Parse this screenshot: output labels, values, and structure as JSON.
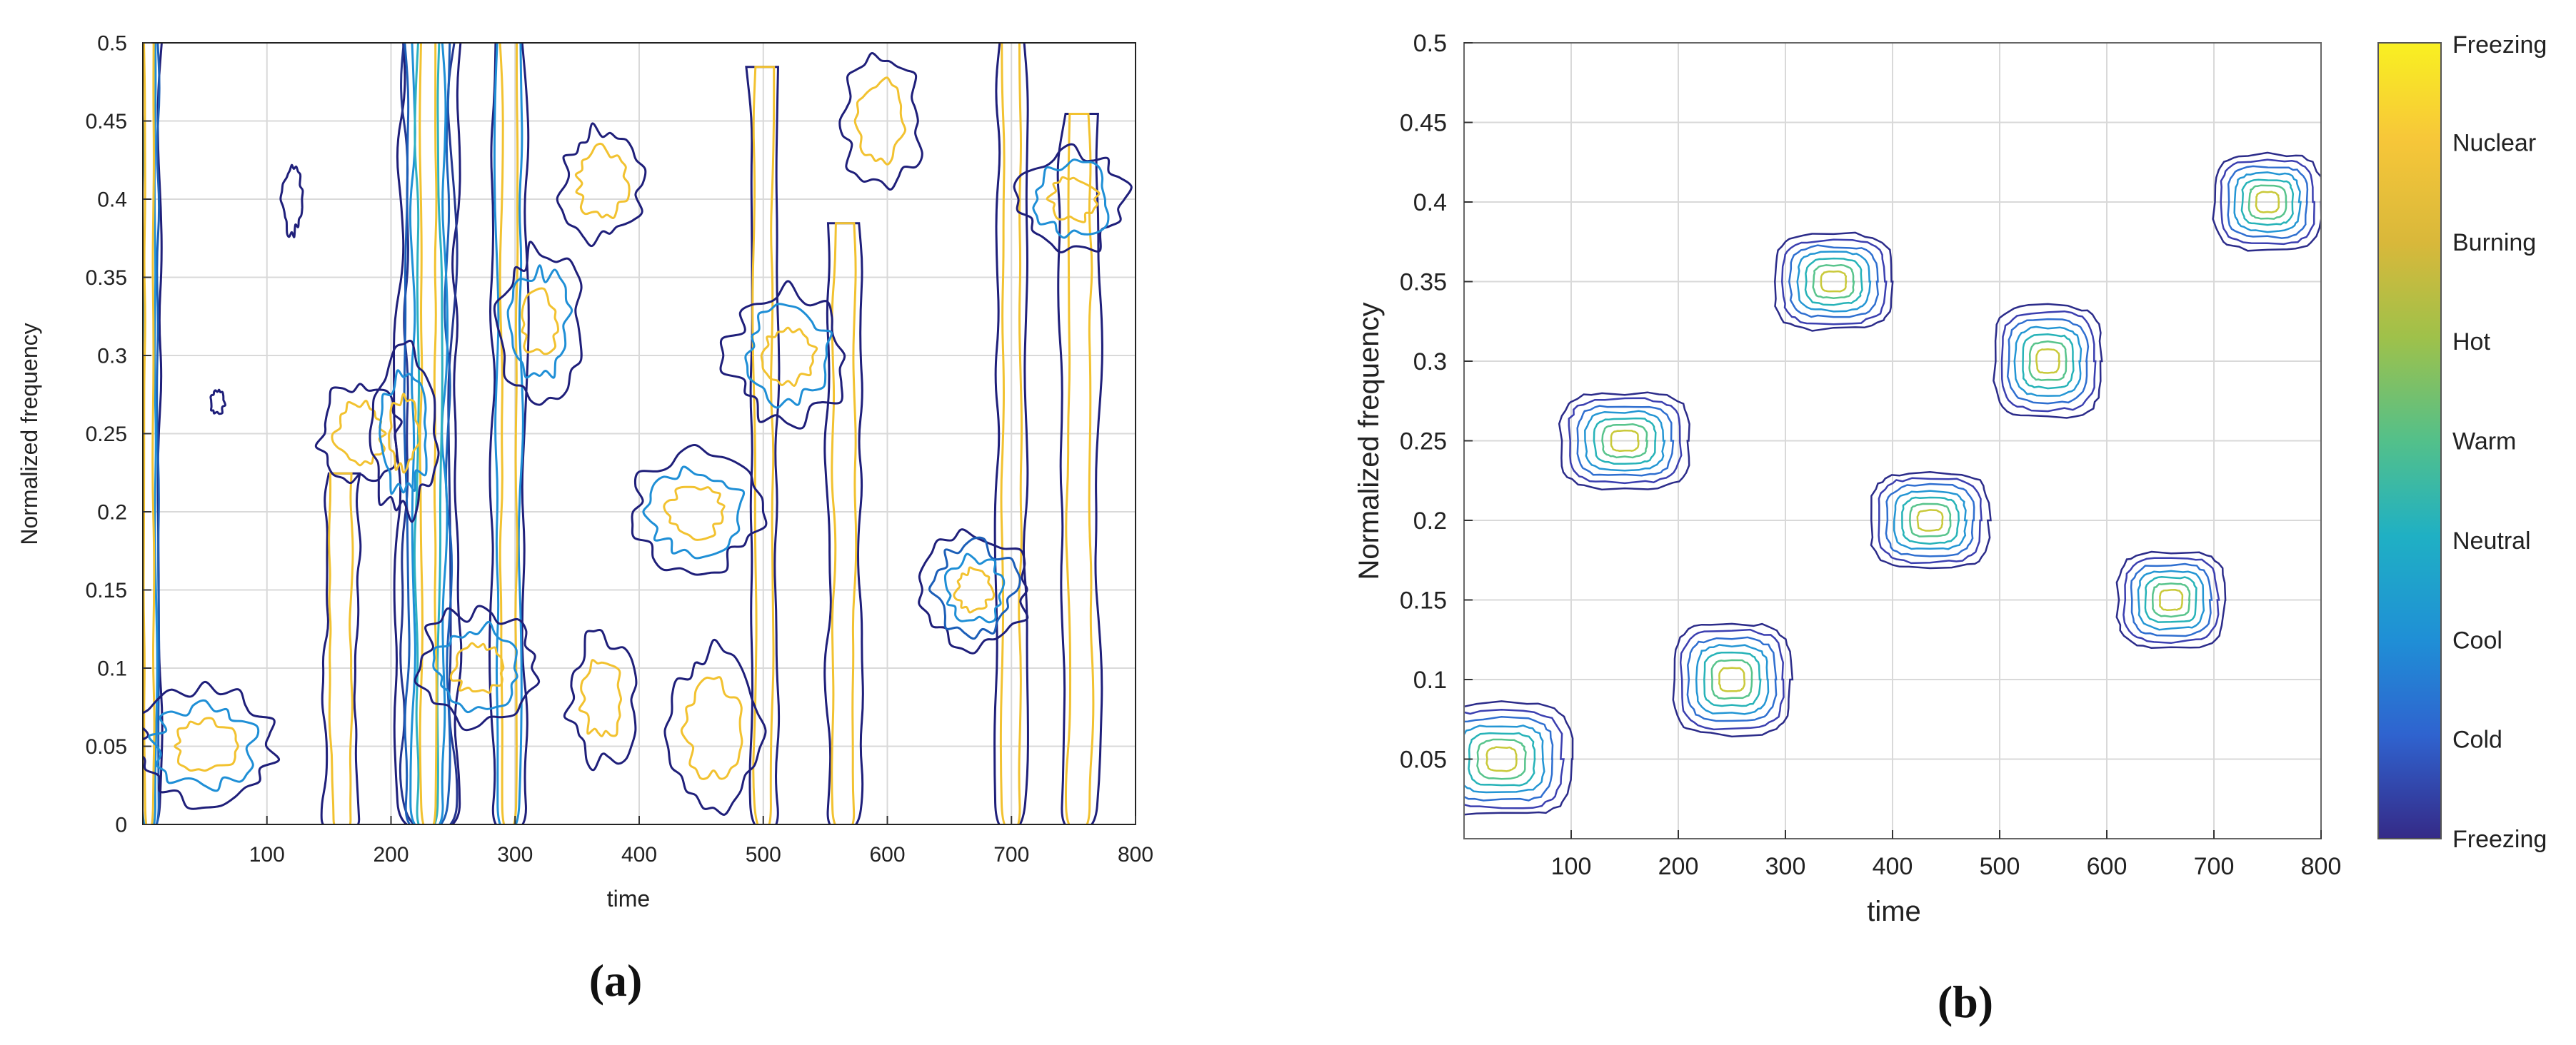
{
  "chart_data": [
    {
      "panel": "(a)",
      "type": "contour",
      "xlabel": "time",
      "ylabel": "Normalized frequency",
      "xlim": [
        0,
        800
      ],
      "ylim": [
        0,
        0.5
      ],
      "xticks": [
        100,
        200,
        300,
        400,
        500,
        600,
        700,
        800
      ],
      "yticks": [
        0,
        0.05,
        0.1,
        0.15,
        0.2,
        0.25,
        0.3,
        0.35,
        0.4,
        0.45,
        0.5
      ],
      "grid": true,
      "levels": 6,
      "colors": [
        "#1f1f7a",
        "#24358f",
        "#1c5fb8",
        "#1f8fd6",
        "#2db1c2",
        "#f2c230"
      ],
      "features": [
        {
          "kind": "vertical-band",
          "x": 5,
          "half_width": 8,
          "y": [
            0,
            0.5
          ],
          "levels": 4
        },
        {
          "kind": "vertical-band",
          "x": 230,
          "half_width": 22,
          "y": [
            0,
            0.5
          ],
          "levels": 6
        },
        {
          "kind": "vertical-band",
          "x": 295,
          "half_width": 12,
          "y": [
            0,
            0.5
          ],
          "levels": 3
        },
        {
          "kind": "vertical-band",
          "x": 160,
          "half_width": 12,
          "y": [
            0,
            0.22
          ],
          "levels": 2
        },
        {
          "kind": "vertical-band",
          "x": 500,
          "half_width": 10,
          "y": [
            0,
            0.48
          ],
          "levels": 2
        },
        {
          "kind": "vertical-band",
          "x": 565,
          "half_width": 12,
          "y": [
            0,
            0.38
          ],
          "levels": 2
        },
        {
          "kind": "vertical-band",
          "x": 700,
          "half_width": 10,
          "y": [
            0,
            0.5
          ],
          "levels": 2
        },
        {
          "kind": "vertical-band",
          "x": 755,
          "half_width": 14,
          "y": [
            0,
            0.45
          ],
          "levels": 2
        },
        {
          "kind": "blob",
          "x": 50,
          "y": 0.05,
          "rx": 55,
          "ry": 0.035,
          "levels": 3
        },
        {
          "kind": "blob",
          "x": 175,
          "y": 0.25,
          "rx": 30,
          "ry": 0.03,
          "levels": 2
        },
        {
          "kind": "blob",
          "x": 210,
          "y": 0.25,
          "rx": 25,
          "ry": 0.05,
          "levels": 3
        },
        {
          "kind": "blob",
          "x": 270,
          "y": 0.1,
          "rx": 45,
          "ry": 0.035,
          "levels": 3
        },
        {
          "kind": "blob",
          "x": 320,
          "y": 0.32,
          "rx": 30,
          "ry": 0.045,
          "levels": 3
        },
        {
          "kind": "blob",
          "x": 370,
          "y": 0.41,
          "rx": 30,
          "ry": 0.035,
          "levels": 2
        },
        {
          "kind": "blob",
          "x": 445,
          "y": 0.2,
          "rx": 50,
          "ry": 0.035,
          "levels": 3
        },
        {
          "kind": "blob",
          "x": 520,
          "y": 0.3,
          "rx": 45,
          "ry": 0.04,
          "levels": 3
        },
        {
          "kind": "blob",
          "x": 370,
          "y": 0.08,
          "rx": 25,
          "ry": 0.04,
          "levels": 2
        },
        {
          "kind": "blob",
          "x": 670,
          "y": 0.15,
          "rx": 40,
          "ry": 0.035,
          "levels": 4
        },
        {
          "kind": "blob",
          "x": 750,
          "y": 0.4,
          "rx": 40,
          "ry": 0.03,
          "levels": 3
        },
        {
          "kind": "blob",
          "x": 595,
          "y": 0.45,
          "rx": 30,
          "ry": 0.04,
          "levels": 2
        },
        {
          "kind": "blob",
          "x": 120,
          "y": 0.4,
          "rx": 6,
          "ry": 0.02,
          "levels": 1
        },
        {
          "kind": "blob",
          "x": 60,
          "y": 0.27,
          "rx": 4,
          "ry": 0.006,
          "levels": 1
        },
        {
          "kind": "blob",
          "x": 460,
          "y": 0.06,
          "rx": 35,
          "ry": 0.05,
          "levels": 2
        }
      ]
    },
    {
      "panel": "(b)",
      "type": "contour",
      "xlabel": "time",
      "ylabel": "Normalized frequency",
      "xlim": [
        0,
        800
      ],
      "ylim": [
        0,
        0.5
      ],
      "xticks": [
        100,
        200,
        300,
        400,
        500,
        600,
        700,
        800
      ],
      "yticks": [
        0.05,
        0.1,
        0.15,
        0.2,
        0.25,
        0.3,
        0.35,
        0.4,
        0.45,
        0.5
      ],
      "grid": true,
      "levels": 7,
      "components": [
        {
          "t": 35,
          "f": 0.05,
          "dt": 65,
          "df": 0.035
        },
        {
          "t": 150,
          "f": 0.25,
          "dt": 60,
          "df": 0.03
        },
        {
          "t": 250,
          "f": 0.1,
          "dt": 55,
          "df": 0.035
        },
        {
          "t": 345,
          "f": 0.35,
          "dt": 55,
          "df": 0.03
        },
        {
          "t": 435,
          "f": 0.2,
          "dt": 55,
          "df": 0.03
        },
        {
          "t": 545,
          "f": 0.3,
          "dt": 50,
          "df": 0.035
        },
        {
          "t": 660,
          "f": 0.15,
          "dt": 50,
          "df": 0.03
        },
        {
          "t": 750,
          "f": 0.4,
          "dt": 50,
          "df": 0.03
        }
      ],
      "colorbar": {
        "labels": [
          "Freezing",
          "Nuclear",
          "Burning",
          "Hot",
          "Warm",
          "Neutral",
          "Cool",
          "Cold",
          "Freezing"
        ],
        "colors": [
          "#f9f021",
          "#f7c739",
          "#d9b83a",
          "#9fc14a",
          "#53c08a",
          "#1fb0c4",
          "#1f8fd6",
          "#2f63cf",
          "#352a87"
        ]
      }
    }
  ],
  "captions": [
    "(a)",
    "(b)"
  ]
}
